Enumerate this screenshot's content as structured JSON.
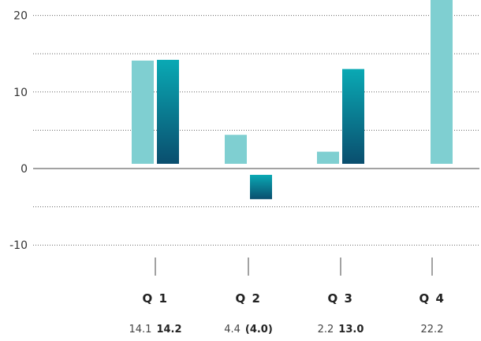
{
  "chart_data": {
    "type": "bar",
    "title": "",
    "xlabel": "",
    "ylabel": "",
    "categories": [
      "Q 1",
      "Q 2",
      "Q 3",
      "Q 4"
    ],
    "ylim": [
      -10,
      20
    ],
    "yticks": [
      20,
      10,
      0,
      -10
    ],
    "grid": true,
    "series": [
      {
        "values": [
          14.1,
          4.4,
          2.2,
          22.2
        ],
        "color": "#7fcfd1",
        "labels": [
          "14.1",
          "4.4",
          "2.2",
          "22.2"
        ]
      },
      {
        "values": [
          14.2,
          -4.0,
          13.0,
          null
        ],
        "color": "#0a98a6",
        "labels": [
          "14.2",
          "(4.0)",
          "13.0",
          ""
        ]
      }
    ]
  }
}
